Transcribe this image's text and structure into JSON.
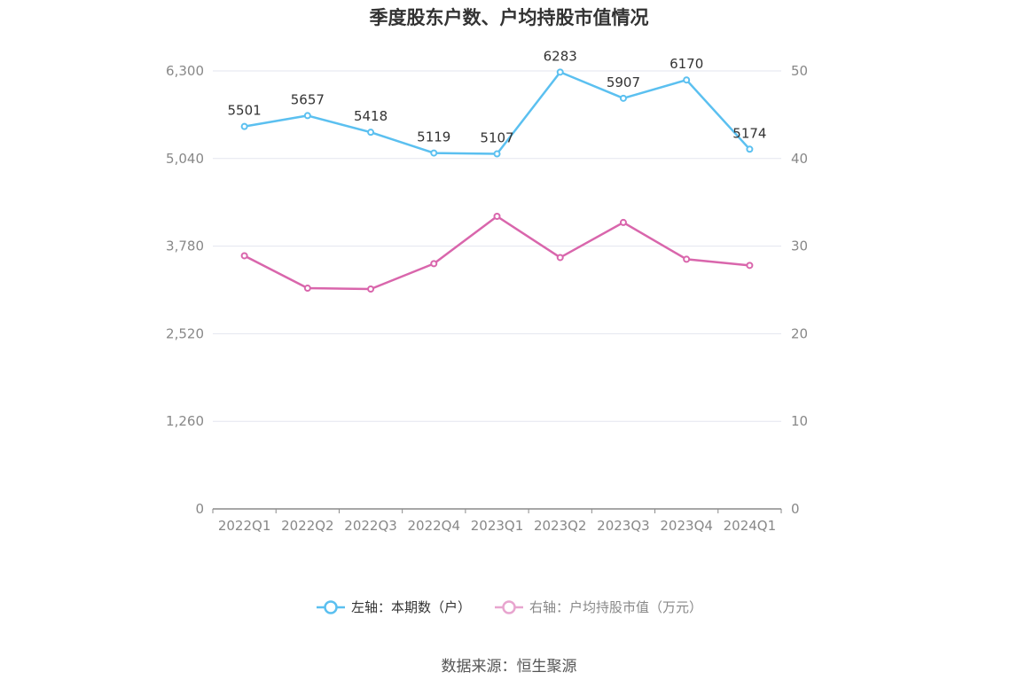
{
  "title": "季度股东户数、户均持股市值情况",
  "source": "数据来源：恒生聚源",
  "colors": {
    "left_series": "#5bc0f0",
    "right_series": "#d966ac",
    "grid": "#e3e6ef",
    "axis": "#8a8a8a",
    "tick_text": "#888888",
    "label_text": "#333333"
  },
  "legend": [
    {
      "label": "左轴：本期数（户）",
      "color": "#5bc0f0",
      "icon": "circle-line-icon"
    },
    {
      "label": "右轴：户均持股市值（万元）",
      "color": "#e8a5cf",
      "icon": "circle-line-icon"
    }
  ],
  "chart_data": {
    "type": "line",
    "title": "季度股东户数、户均持股市值情况",
    "categories": [
      "2022Q1",
      "2022Q2",
      "2022Q3",
      "2022Q4",
      "2023Q1",
      "2023Q2",
      "2023Q3",
      "2023Q4",
      "2024Q1"
    ],
    "left_axis": {
      "min": 0,
      "max": 6300,
      "ticks": [
        0,
        1260,
        2520,
        3780,
        5040,
        6300
      ],
      "tick_labels": [
        "0",
        "1,260",
        "2,520",
        "3,780",
        "5,040",
        "6,300"
      ]
    },
    "right_axis": {
      "min": 0,
      "max": 50,
      "ticks": [
        0,
        10,
        20,
        30,
        40,
        50
      ],
      "tick_labels": [
        "0",
        "10",
        "20",
        "30",
        "40",
        "50"
      ]
    },
    "series": [
      {
        "name": "左轴：本期数（户）",
        "axis": "left",
        "color": "#5bc0f0",
        "values": [
          5501,
          5657,
          5418,
          5119,
          5107,
          6283,
          5907,
          6170,
          5174
        ],
        "show_labels": true
      },
      {
        "name": "右轴：户均持股市值（万元）",
        "axis": "right",
        "color": "#d966ac",
        "values": [
          28.9,
          25.2,
          25.1,
          28.0,
          33.4,
          28.7,
          32.7,
          28.5,
          27.8
        ],
        "show_labels": false
      }
    ],
    "grid": true,
    "legend_position": "bottom-center"
  }
}
